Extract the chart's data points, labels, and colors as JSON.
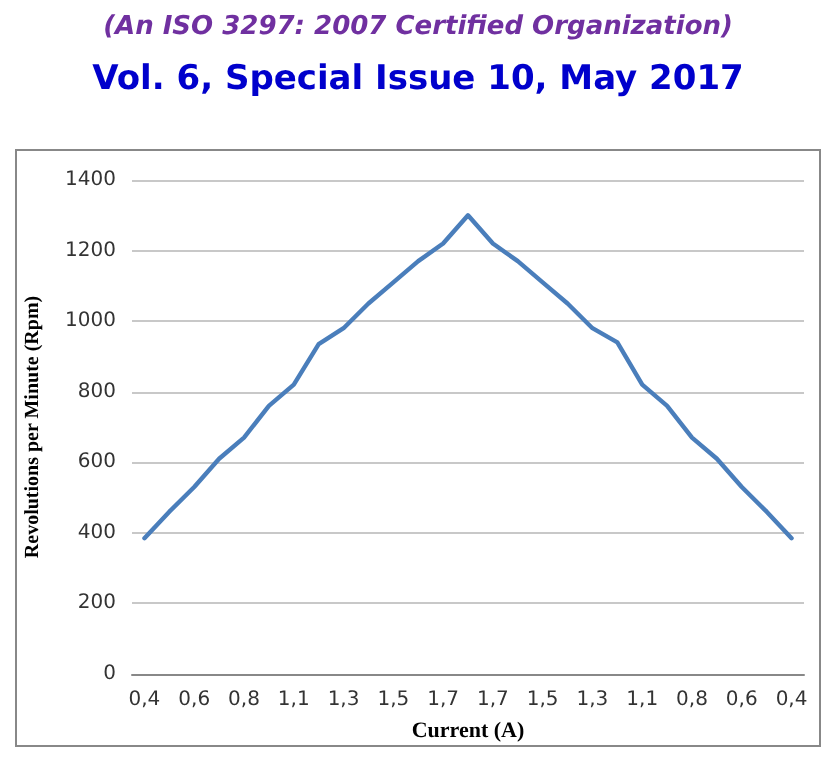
{
  "chart_data": {
    "type": "line",
    "title": "(An ISO 3297: 2007 Certified Organization)",
    "subtitle": "Vol. 6, Special Issue 10, May 2017",
    "xlabel": "Current (A)",
    "ylabel": "Revolutions per Minute (Rpm)",
    "categories": [
      "0,4",
      null,
      "0,6",
      null,
      "0,8",
      null,
      "1,1",
      null,
      "1,3",
      null,
      "1,5",
      null,
      "1,7",
      null,
      "1,7",
      null,
      "1,5",
      null,
      "1,3",
      null,
      "1,1",
      null,
      "0,8",
      null,
      "0,6",
      null,
      "0,4"
    ],
    "series": [
      {
        "color": "#4a7ebb",
        "values": [
          385,
          460,
          530,
          610,
          670,
          760,
          820,
          935,
          980,
          1050,
          1110,
          1170,
          1220,
          1300,
          1220,
          1170,
          1110,
          1050,
          980,
          940,
          820,
          760,
          670,
          610,
          530,
          460,
          385
        ]
      }
    ],
    "ylim": [
      0,
      1400
    ],
    "yticks": [
      0,
      200,
      400,
      600,
      800,
      1000,
      1200,
      1400
    ],
    "grid": "y",
    "marker": "none",
    "line_style": "solid"
  }
}
